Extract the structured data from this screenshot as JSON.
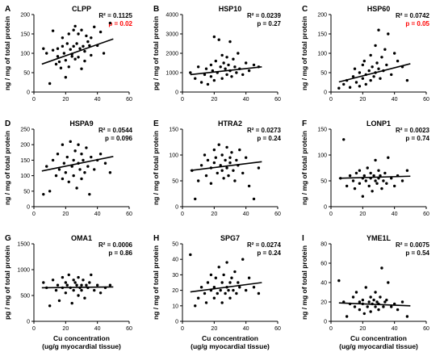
{
  "chart_data": [
    {
      "type": "scatter",
      "letter": "A",
      "title": "CLPP",
      "ylabel": "ng / mg of total protein",
      "xlabel": "",
      "xlim": [
        0,
        60
      ],
      "xticks": [
        "0",
        "20",
        "40",
        "60"
      ],
      "ylim": [
        0,
        200
      ],
      "yticks": [
        "0",
        "50",
        "100",
        "150",
        "200"
      ],
      "r2": "R² = 0.1125",
      "p": "p = 0.02",
      "p_color": "#ff0000",
      "trend": [
        [
          5,
          72
        ],
        [
          50,
          137
        ]
      ],
      "x": [
        6,
        8,
        10,
        12,
        12,
        14,
        15,
        15,
        16,
        17,
        18,
        18,
        19,
        20,
        20,
        21,
        22,
        22,
        23,
        24,
        24,
        25,
        25,
        26,
        26,
        27,
        28,
        28,
        29,
        30,
        30,
        31,
        32,
        32,
        33,
        34,
        35,
        36,
        36,
        38,
        40,
        42,
        44,
        48
      ],
      "y": [
        112,
        100,
        22,
        158,
        108,
        72,
        112,
        92,
        78,
        62,
        140,
        118,
        100,
        38,
        82,
        125,
        150,
        65,
        110,
        92,
        98,
        160,
        118,
        170,
        85,
        125,
        90,
        150,
        112,
        60,
        160,
        118,
        105,
        80,
        145,
        130,
        120,
        140,
        95,
        168,
        120,
        155,
        100,
        178
      ]
    },
    {
      "type": "scatter",
      "letter": "B",
      "title": "HSP10",
      "ylabel": "pg / mg of total protein",
      "xlabel": "",
      "xlim": [
        0,
        60
      ],
      "xticks": [
        "0",
        "20",
        "40",
        "60"
      ],
      "ylim": [
        0,
        4000
      ],
      "yticks": [
        "0",
        "1000",
        "2000",
        "3000",
        "4000"
      ],
      "r2": "R² = 0.0239",
      "p": "p = 0.27",
      "p_color": "#000000",
      "trend": [
        [
          5,
          900
        ],
        [
          50,
          1300
        ]
      ],
      "x": [
        5,
        8,
        10,
        12,
        14,
        15,
        16,
        18,
        18,
        19,
        20,
        20,
        21,
        22,
        23,
        24,
        25,
        25,
        26,
        27,
        28,
        28,
        29,
        30,
        30,
        31,
        32,
        33,
        34,
        35,
        36,
        38,
        40,
        42,
        45,
        48
      ],
      "y": [
        1000,
        700,
        1300,
        500,
        900,
        1200,
        400,
        1400,
        800,
        1100,
        2850,
        600,
        1600,
        1000,
        2700,
        1300,
        700,
        1900,
        1500,
        1200,
        1800,
        900,
        1400,
        1100,
        2600,
        800,
        1700,
        1300,
        1000,
        2000,
        1200,
        900,
        1500,
        1100,
        1400,
        1300
      ]
    },
    {
      "type": "scatter",
      "letter": "C",
      "title": "HSP60",
      "ylabel": "ng / mg of total protein",
      "xlabel": "",
      "xlim": [
        0,
        60
      ],
      "xticks": [
        "0",
        "20",
        "40",
        "60"
      ],
      "ylim": [
        0,
        200
      ],
      "yticks": [
        "0",
        "50",
        "100",
        "150",
        "200"
      ],
      "r2": "R² = 0.0742",
      "p": "p = 0.05",
      "p_color": "#ff0000",
      "trend": [
        [
          5,
          26
        ],
        [
          50,
          73
        ]
      ],
      "x": [
        5,
        8,
        10,
        12,
        14,
        15,
        16,
        18,
        18,
        20,
        20,
        21,
        22,
        22,
        24,
        25,
        25,
        26,
        27,
        28,
        28,
        29,
        30,
        30,
        31,
        32,
        33,
        34,
        35,
        36,
        38,
        40,
        42,
        45,
        48
      ],
      "y": [
        10,
        20,
        30,
        12,
        40,
        60,
        25,
        50,
        15,
        70,
        35,
        80,
        45,
        20,
        55,
        95,
        30,
        65,
        40,
        120,
        50,
        75,
        60,
        160,
        35,
        90,
        55,
        110,
        70,
        150,
        45,
        100,
        80,
        65,
        30
      ]
    },
    {
      "type": "scatter",
      "letter": "D",
      "title": "HSPA9",
      "ylabel": "ng / mg of total protein",
      "xlabel": "",
      "xlim": [
        0,
        60
      ],
      "xticks": [
        "0",
        "20",
        "40",
        "60"
      ],
      "ylim": [
        0,
        250
      ],
      "yticks": [
        "0",
        "50",
        "100",
        "150",
        "200",
        "250"
      ],
      "r2": "R² = 0.0544",
      "p": "p = 0.096",
      "p_color": "#000000",
      "trend": [
        [
          5,
          115
        ],
        [
          50,
          162
        ]
      ],
      "x": [
        6,
        8,
        10,
        12,
        14,
        15,
        16,
        18,
        18,
        19,
        20,
        21,
        22,
        23,
        24,
        25,
        25,
        26,
        27,
        28,
        28,
        29,
        30,
        30,
        31,
        32,
        33,
        34,
        35,
        36,
        38,
        40,
        42,
        45,
        48
      ],
      "y": [
        40,
        130,
        50,
        150,
        100,
        170,
        120,
        90,
        200,
        140,
        110,
        160,
        80,
        210,
        130,
        150,
        100,
        180,
        60,
        140,
        200,
        120,
        170,
        90,
        150,
        110,
        190,
        130,
        40,
        160,
        120,
        150,
        170,
        140,
        110
      ]
    },
    {
      "type": "scatter",
      "letter": "E",
      "title": "HTRA2",
      "ylabel": "ng / mg of total protein",
      "xlabel": "",
      "xlim": [
        0,
        60
      ],
      "xticks": [
        "0",
        "20",
        "40",
        "60"
      ],
      "ylim": [
        0,
        150
      ],
      "yticks": [
        "0",
        "50",
        "100",
        "150"
      ],
      "r2": "R² = 0.0273",
      "p": "p = 0.24",
      "p_color": "#000000",
      "trend": [
        [
          5,
          70
        ],
        [
          50,
          87
        ]
      ],
      "x": [
        6,
        8,
        10,
        12,
        14,
        15,
        16,
        18,
        18,
        20,
        20,
        21,
        22,
        23,
        24,
        25,
        25,
        26,
        27,
        28,
        28,
        29,
        30,
        30,
        31,
        32,
        33,
        34,
        35,
        36,
        38,
        40,
        42,
        45,
        48
      ],
      "y": [
        70,
        15,
        50,
        80,
        100,
        60,
        90,
        75,
        45,
        110,
        85,
        95,
        65,
        120,
        80,
        70,
        100,
        55,
        90,
        115,
        75,
        60,
        95,
        85,
        105,
        70,
        50,
        90,
        80,
        110,
        65,
        95,
        40,
        15,
        75
      ]
    },
    {
      "type": "scatter",
      "letter": "F",
      "title": "LONP1",
      "ylabel": "ng / mg of total protein",
      "xlabel": "",
      "xlim": [
        0,
        60
      ],
      "xticks": [
        "0",
        "20",
        "40",
        "60"
      ],
      "ylim": [
        0,
        150
      ],
      "yticks": [
        "0",
        "50",
        "100",
        "150"
      ],
      "r2": "R² = 0.0023",
      "p": "p = 0.74",
      "p_color": "#000000",
      "trend": [
        [
          5,
          55
        ],
        [
          50,
          59
        ]
      ],
      "x": [
        6,
        8,
        10,
        12,
        14,
        15,
        16,
        18,
        18,
        20,
        20,
        21,
        22,
        23,
        24,
        25,
        25,
        26,
        27,
        28,
        28,
        29,
        30,
        30,
        31,
        32,
        33,
        34,
        35,
        36,
        38,
        40,
        42,
        45,
        48
      ],
      "y": [
        55,
        130,
        40,
        60,
        50,
        35,
        65,
        45,
        70,
        55,
        20,
        60,
        50,
        75,
        40,
        55,
        65,
        30,
        60,
        50,
        90,
        45,
        70,
        55,
        60,
        35,
        50,
        65,
        45,
        95,
        55,
        40,
        60,
        50,
        70
      ]
    },
    {
      "type": "scatter",
      "letter": "G",
      "title": "OMA1",
      "ylabel": "pg / mg of total protein",
      "xlabel": "Cu concentration\n(ug/g myocardial tissue)",
      "xlim": [
        0,
        60
      ],
      "xticks": [
        "0",
        "20",
        "40",
        "60"
      ],
      "ylim": [
        0,
        1500
      ],
      "yticks": [
        "0",
        "500",
        "1000",
        "1500"
      ],
      "r2": "R² = 0.0006",
      "p": "p = 0.86",
      "p_color": "#000000",
      "trend": [
        [
          5,
          650
        ],
        [
          50,
          665
        ]
      ],
      "x": [
        6,
        8,
        10,
        12,
        14,
        15,
        16,
        18,
        18,
        20,
        20,
        21,
        22,
        23,
        24,
        25,
        25,
        26,
        27,
        28,
        28,
        29,
        30,
        30,
        31,
        32,
        33,
        34,
        35,
        36,
        38,
        40,
        42,
        45,
        48
      ],
      "y": [
        750,
        650,
        300,
        800,
        600,
        700,
        400,
        850,
        650,
        750,
        550,
        700,
        900,
        650,
        350,
        800,
        600,
        750,
        700,
        500,
        850,
        650,
        700,
        600,
        800,
        450,
        700,
        650,
        750,
        900,
        600,
        700,
        550,
        650,
        700
      ]
    },
    {
      "type": "scatter",
      "letter": "H",
      "title": "SPG7",
      "ylabel": "ng / mg of total protein",
      "xlabel": "Cu concentration\n(ug/g myocardial tissue)",
      "xlim": [
        0,
        60
      ],
      "xticks": [
        "0",
        "20",
        "40",
        "60"
      ],
      "ylim": [
        0,
        50
      ],
      "yticks": [
        "0",
        "10",
        "20",
        "30",
        "40",
        "50"
      ],
      "r2": "R² = 0.0274",
      "p": "p = 0.24",
      "p_color": "#000000",
      "trend": [
        [
          5,
          19
        ],
        [
          50,
          25
        ]
      ],
      "x": [
        5,
        8,
        10,
        12,
        14,
        15,
        16,
        18,
        18,
        20,
        20,
        21,
        22,
        23,
        24,
        25,
        25,
        26,
        27,
        28,
        28,
        29,
        30,
        30,
        31,
        32,
        33,
        34,
        35,
        36,
        38,
        40,
        42,
        45,
        48
      ],
      "y": [
        43,
        10,
        15,
        22,
        18,
        12,
        25,
        20,
        30,
        15,
        22,
        28,
        18,
        35,
        20,
        12,
        25,
        30,
        18,
        22,
        38,
        20,
        25,
        15,
        28,
        20,
        32,
        18,
        25,
        22,
        40,
        20,
        28,
        22,
        18
      ]
    },
    {
      "type": "scatter",
      "letter": "I",
      "title": "YME1L",
      "ylabel": "ng / mg of total protein",
      "xlabel": "Cu concentration\n(ug/g myocardial tissue)",
      "xlim": [
        0,
        60
      ],
      "xticks": [
        "0",
        "20",
        "40",
        "60"
      ],
      "ylim": [
        0,
        80
      ],
      "yticks": [
        "0",
        "20",
        "40",
        "60",
        "80"
      ],
      "r2": "R² = 0.0075",
      "p": "p = 0.54",
      "p_color": "#000000",
      "trend": [
        [
          5,
          19
        ],
        [
          50,
          16
        ]
      ],
      "x": [
        5,
        8,
        10,
        12,
        14,
        15,
        16,
        18,
        18,
        20,
        20,
        21,
        22,
        23,
        24,
        25,
        25,
        26,
        27,
        28,
        28,
        29,
        30,
        30,
        31,
        32,
        33,
        34,
        35,
        36,
        38,
        40,
        42,
        45,
        48
      ],
      "y": [
        42,
        20,
        5,
        18,
        25,
        15,
        30,
        12,
        20,
        18,
        22,
        8,
        35,
        15,
        20,
        25,
        10,
        18,
        22,
        15,
        30,
        20,
        12,
        18,
        25,
        55,
        15,
        20,
        22,
        40,
        15,
        18,
        12,
        20,
        5
      ]
    }
  ]
}
